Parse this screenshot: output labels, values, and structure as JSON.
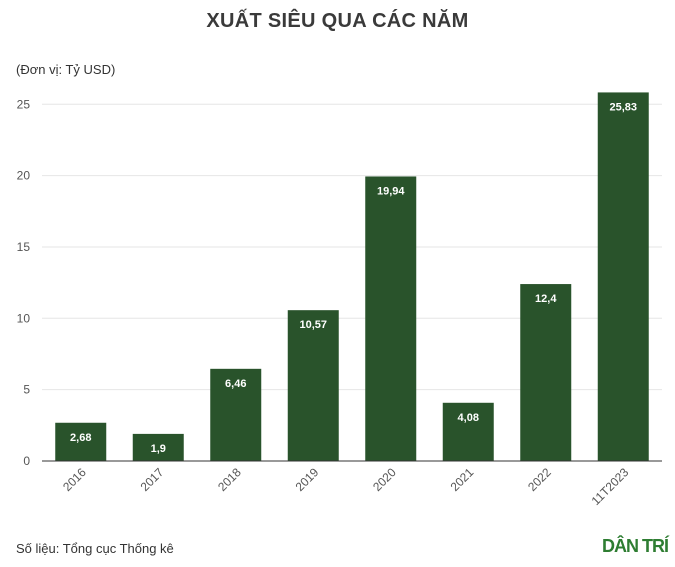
{
  "header": {
    "title": "XUẤT SIÊU QUA CÁC NĂM",
    "unit": "(Đơn vị: Tỷ USD)"
  },
  "footer": {
    "source": "Số liệu: Tổng cục Thống kê",
    "logo_text": "DÂN TRÍ"
  },
  "colors": {
    "bar": "#29532b",
    "grid": "#e6e6e6",
    "axis": "#333333",
    "logo": "#2e7d32"
  },
  "chart_data": {
    "type": "bar",
    "title": "XUẤT SIÊU QUA CÁC NĂM",
    "ylabel": "(Đơn vị: Tỷ USD)",
    "xlabel": "",
    "categories": [
      "2016",
      "2017",
      "2018",
      "2019",
      "2020",
      "2021",
      "2022",
      "11T2023"
    ],
    "values": [
      2.68,
      1.9,
      6.46,
      10.57,
      19.94,
      4.08,
      12.4,
      25.83
    ],
    "value_labels": [
      "2,68",
      "1,9",
      "6,46",
      "10,57",
      "19,94",
      "4,08",
      "12,4",
      "25,83"
    ],
    "ylim": [
      0,
      26
    ],
    "yticks": [
      0,
      5,
      10,
      15,
      20,
      25
    ],
    "grid": true,
    "legend": "none"
  }
}
